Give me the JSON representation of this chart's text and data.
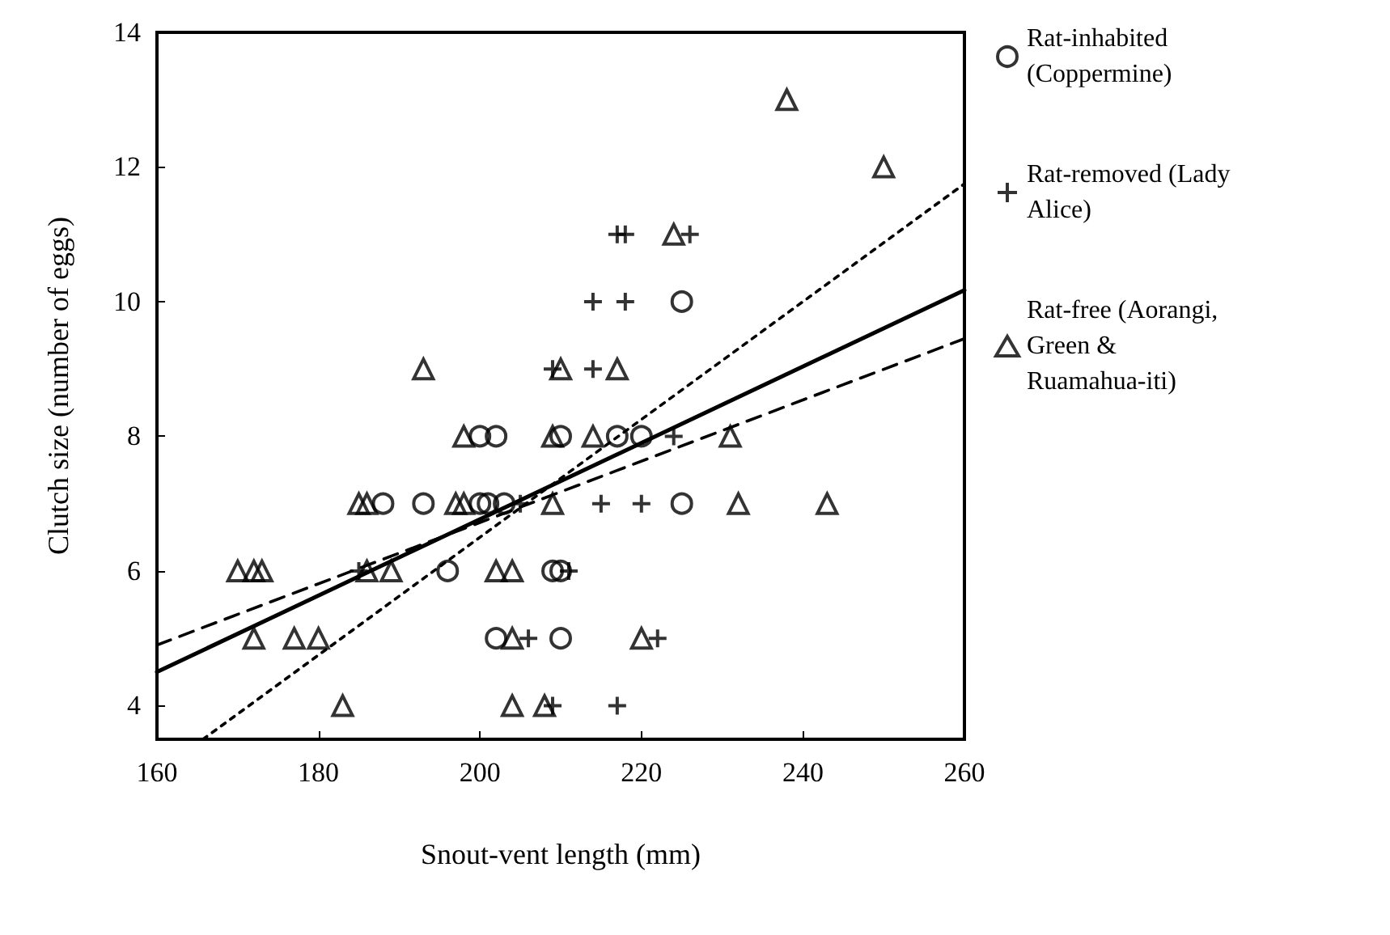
{
  "chart_data": {
    "type": "scatter",
    "xlabel": "Snout-vent length (mm)",
    "ylabel": "Clutch size (number of eggs)",
    "xlim": [
      160,
      260
    ],
    "xticks": [
      160,
      180,
      200,
      220,
      240,
      260
    ],
    "ylim": [
      3.5,
      14
    ],
    "yticks": [
      4,
      6,
      8,
      10,
      12,
      14
    ],
    "grid": false,
    "legend": "right",
    "series": [
      {
        "name": "Rat-inhabited (Coppermine)",
        "color": "#000000",
        "marker": "circle",
        "x": [
          188,
          193,
          200,
          201,
          203,
          200,
          202,
          210,
          217,
          220,
          196,
          209,
          210,
          202,
          210,
          225,
          225
        ],
        "values": [
          7,
          7,
          7,
          7,
          7,
          8,
          8,
          8,
          8,
          8,
          6,
          6,
          6,
          5,
          5,
          10,
          7
        ]
      },
      {
        "name": "Rat-removed (Lady Alice)",
        "color": "#000000",
        "marker": "cross",
        "x": [
          217,
          218,
          226,
          214,
          218,
          209,
          214,
          224,
          205,
          215,
          220,
          211,
          206,
          222,
          209,
          217,
          185
        ],
        "values": [
          11,
          11,
          11,
          10,
          10,
          9,
          9,
          8,
          7,
          7,
          7,
          6,
          5,
          5,
          4,
          4,
          6
        ]
      },
      {
        "name": "Rat-free (Aorangi, Green & Ruamahua-iti)",
        "color": "#000000",
        "marker": "triangle",
        "x": [
          170,
          172,
          173,
          172,
          177,
          180,
          183,
          185,
          186,
          186,
          189,
          193,
          198,
          197,
          198,
          202,
          204,
          204,
          204,
          208,
          210,
          209,
          214,
          217,
          209,
          220,
          224,
          231,
          232,
          243,
          238,
          250
        ],
        "values": [
          6,
          6,
          6,
          5,
          5,
          5,
          4,
          7,
          7,
          6,
          6,
          9,
          8,
          7,
          7,
          6,
          6,
          5,
          4,
          4,
          9,
          8,
          8,
          9,
          7,
          5,
          11,
          8,
          7,
          7,
          13,
          12
        ]
      },
      {
        "type": "line",
        "color": "#000000",
        "marker": "none",
        "line_style": "solid",
        "x": [
          160,
          260
        ],
        "values": [
          4.5,
          10.17
        ]
      },
      {
        "type": "line",
        "color": "#000000",
        "marker": "none",
        "line_style": "dashed",
        "x": [
          160,
          260
        ],
        "values": [
          4.9,
          9.45
        ]
      },
      {
        "type": "line",
        "color": "#000000",
        "marker": "none",
        "line_style": "dotted",
        "x": [
          165.7,
          260
        ],
        "values": [
          3.5,
          11.75
        ]
      }
    ]
  }
}
